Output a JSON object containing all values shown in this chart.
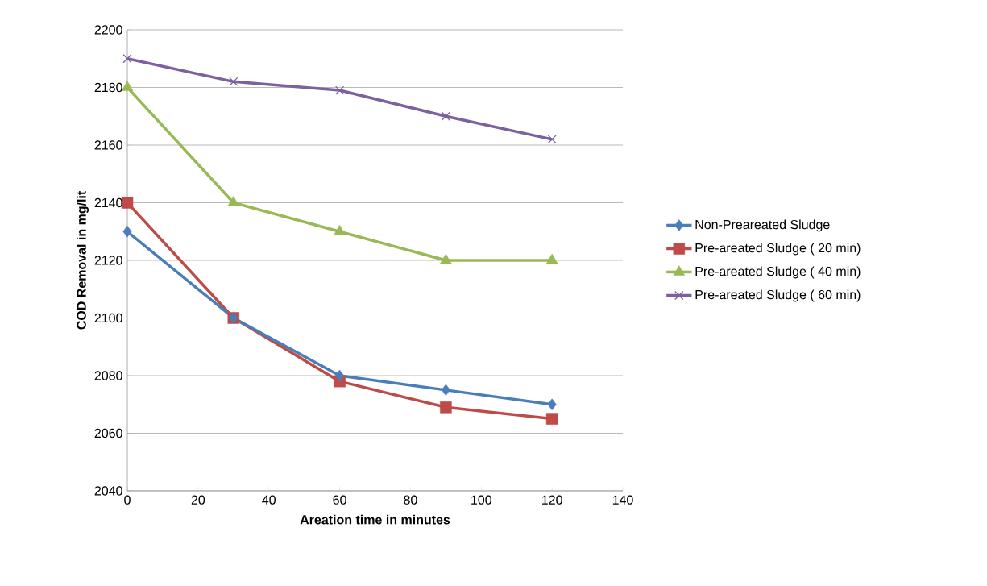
{
  "chart_data": {
    "type": "line",
    "xlabel": "Areation time in minutes",
    "ylabel": "COD Removal in mg/lit",
    "x": [
      0,
      30,
      60,
      90,
      120
    ],
    "series": [
      {
        "name": "Non-Preareated Sludge",
        "color": "#4a7ebb",
        "marker": "diamond",
        "values": [
          2130,
          2100,
          2080,
          2075,
          2070
        ]
      },
      {
        "name": "Pre-areated Sludge ( 20 min)",
        "color": "#be4b48",
        "marker": "square",
        "values": [
          2140,
          2100,
          2078,
          2069,
          2065
        ]
      },
      {
        "name": "Pre-areated Sludge ( 40 min)",
        "color": "#98b954",
        "marker": "triangle",
        "values": [
          2180,
          2140,
          2130,
          2120,
          2120
        ]
      },
      {
        "name": "Pre-areated Sludge ( 60 min)",
        "color": "#7d60a0",
        "marker": "cross",
        "values": [
          2190,
          2182,
          2179,
          2170,
          2162
        ]
      }
    ],
    "xlim": [
      0,
      140
    ],
    "xticks": [
      0,
      20,
      40,
      60,
      80,
      100,
      120,
      140
    ],
    "ylim": [
      2040,
      2200
    ],
    "yticks": [
      2040,
      2060,
      2080,
      2100,
      2120,
      2140,
      2160,
      2180,
      2200
    ],
    "grid": "y",
    "legend": "right"
  }
}
